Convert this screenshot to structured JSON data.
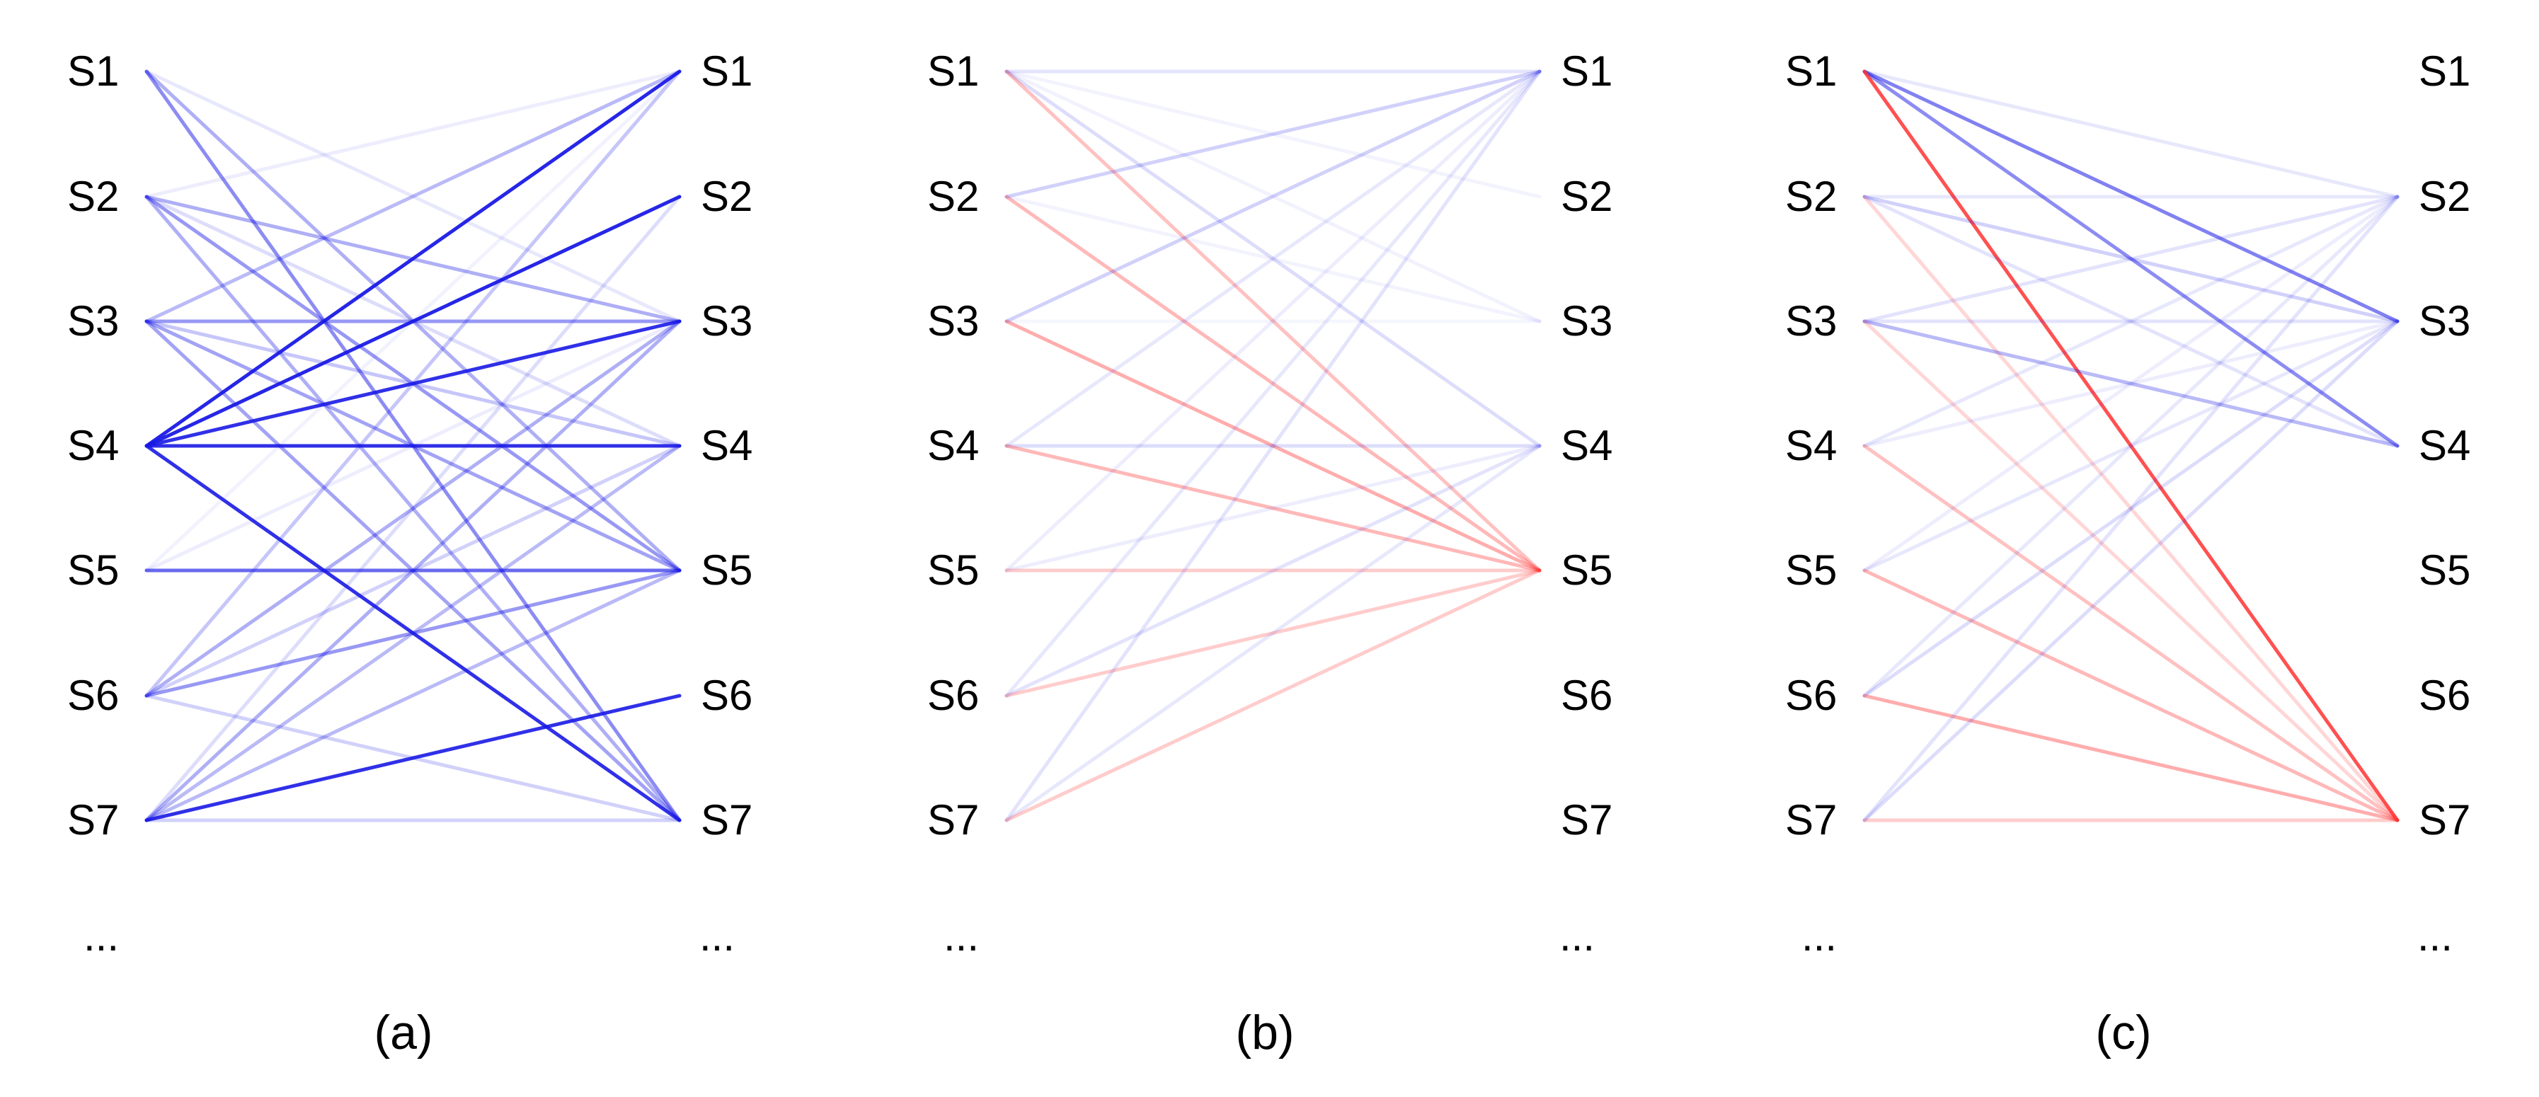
{
  "colors": {
    "blue": "#1a1ae6",
    "red": "#ff3333",
    "text": "#000000",
    "background": "#ffffff"
  },
  "panels": [
    {
      "caption": "(a)",
      "left_nodes": [
        "S1",
        "S2",
        "S3",
        "S4",
        "S5",
        "S6",
        "S7"
      ],
      "right_nodes": [
        "S1",
        "S2",
        "S3",
        "S4",
        "S5",
        "S6",
        "S7"
      ],
      "left_ellipsis": "...",
      "right_ellipsis": "...",
      "edges": [
        {
          "from": 1,
          "to": 7,
          "sign": "pos",
          "weight": 0.5
        },
        {
          "from": 1,
          "to": 5,
          "sign": "pos",
          "weight": 0.35
        },
        {
          "from": 1,
          "to": 3,
          "sign": "pos",
          "weight": 0.1
        },
        {
          "from": 2,
          "to": 1,
          "sign": "pos",
          "weight": 0.08
        },
        {
          "from": 2,
          "to": 3,
          "sign": "pos",
          "weight": 0.35
        },
        {
          "from": 2,
          "to": 4,
          "sign": "pos",
          "weight": 0.15
        },
        {
          "from": 2,
          "to": 5,
          "sign": "pos",
          "weight": 0.45
        },
        {
          "from": 2,
          "to": 7,
          "sign": "pos",
          "weight": 0.35
        },
        {
          "from": 3,
          "to": 1,
          "sign": "pos",
          "weight": 0.3
        },
        {
          "from": 3,
          "to": 3,
          "sign": "pos",
          "weight": 0.45
        },
        {
          "from": 3,
          "to": 4,
          "sign": "pos",
          "weight": 0.25
        },
        {
          "from": 3,
          "to": 5,
          "sign": "pos",
          "weight": 0.4
        },
        {
          "from": 3,
          "to": 7,
          "sign": "pos",
          "weight": 0.4
        },
        {
          "from": 4,
          "to": 1,
          "sign": "pos",
          "weight": 0.95
        },
        {
          "from": 4,
          "to": 2,
          "sign": "pos",
          "weight": 0.95
        },
        {
          "from": 4,
          "to": 3,
          "sign": "pos",
          "weight": 0.9
        },
        {
          "from": 4,
          "to": 4,
          "sign": "pos",
          "weight": 0.9
        },
        {
          "from": 4,
          "to": 7,
          "sign": "pos",
          "weight": 0.9
        },
        {
          "from": 5,
          "to": 5,
          "sign": "pos",
          "weight": 0.65
        },
        {
          "from": 5,
          "to": 1,
          "sign": "pos",
          "weight": 0.06
        },
        {
          "from": 5,
          "to": 3,
          "sign": "pos",
          "weight": 0.08
        },
        {
          "from": 6,
          "to": 1,
          "sign": "pos",
          "weight": 0.25
        },
        {
          "from": 6,
          "to": 3,
          "sign": "pos",
          "weight": 0.35
        },
        {
          "from": 6,
          "to": 4,
          "sign": "pos",
          "weight": 0.2
        },
        {
          "from": 6,
          "to": 5,
          "sign": "pos",
          "weight": 0.45
        },
        {
          "from": 6,
          "to": 7,
          "sign": "pos",
          "weight": 0.2
        },
        {
          "from": 7,
          "to": 2,
          "sign": "pos",
          "weight": 0.15
        },
        {
          "from": 7,
          "to": 3,
          "sign": "pos",
          "weight": 0.35
        },
        {
          "from": 7,
          "to": 4,
          "sign": "pos",
          "weight": 0.3
        },
        {
          "from": 7,
          "to": 5,
          "sign": "pos",
          "weight": 0.3
        },
        {
          "from": 7,
          "to": 6,
          "sign": "pos",
          "weight": 0.9
        },
        {
          "from": 7,
          "to": 7,
          "sign": "pos",
          "weight": 0.2
        }
      ]
    },
    {
      "caption": "(b)",
      "left_nodes": [
        "S1",
        "S2",
        "S3",
        "S4",
        "S5",
        "S6",
        "S7"
      ],
      "right_nodes": [
        "S1",
        "S2",
        "S3",
        "S4",
        "S5",
        "S6",
        "S7"
      ],
      "left_ellipsis": "...",
      "right_ellipsis": "...",
      "edges": [
        {
          "from": 1,
          "to": 1,
          "sign": "pos",
          "weight": 0.12
        },
        {
          "from": 1,
          "to": 3,
          "sign": "pos",
          "weight": 0.06
        },
        {
          "from": 1,
          "to": 4,
          "sign": "pos",
          "weight": 0.15
        },
        {
          "from": 1,
          "to": 5,
          "sign": "neg",
          "weight": 0.3
        },
        {
          "from": 1,
          "to": 2,
          "sign": "pos",
          "weight": 0.05
        },
        {
          "from": 2,
          "to": 1,
          "sign": "pos",
          "weight": 0.2
        },
        {
          "from": 2,
          "to": 5,
          "sign": "neg",
          "weight": 0.35
        },
        {
          "from": 2,
          "to": 3,
          "sign": "pos",
          "weight": 0.05
        },
        {
          "from": 3,
          "to": 1,
          "sign": "pos",
          "weight": 0.2
        },
        {
          "from": 3,
          "to": 5,
          "sign": "neg",
          "weight": 0.4
        },
        {
          "from": 3,
          "to": 3,
          "sign": "pos",
          "weight": 0.04
        },
        {
          "from": 4,
          "to": 1,
          "sign": "pos",
          "weight": 0.1
        },
        {
          "from": 4,
          "to": 4,
          "sign": "pos",
          "weight": 0.15
        },
        {
          "from": 4,
          "to": 5,
          "sign": "neg",
          "weight": 0.35
        },
        {
          "from": 5,
          "to": 1,
          "sign": "pos",
          "weight": 0.08
        },
        {
          "from": 5,
          "to": 4,
          "sign": "pos",
          "weight": 0.08
        },
        {
          "from": 5,
          "to": 5,
          "sign": "neg",
          "weight": 0.25
        },
        {
          "from": 6,
          "to": 1,
          "sign": "pos",
          "weight": 0.1
        },
        {
          "from": 6,
          "to": 4,
          "sign": "pos",
          "weight": 0.12
        },
        {
          "from": 6,
          "to": 5,
          "sign": "neg",
          "weight": 0.25
        },
        {
          "from": 7,
          "to": 1,
          "sign": "pos",
          "weight": 0.12
        },
        {
          "from": 7,
          "to": 4,
          "sign": "pos",
          "weight": 0.1
        },
        {
          "from": 7,
          "to": 5,
          "sign": "neg",
          "weight": 0.25
        }
      ]
    },
    {
      "caption": "(c)",
      "left_nodes": [
        "S1",
        "S2",
        "S3",
        "S4",
        "S5",
        "S6",
        "S7"
      ],
      "right_nodes": [
        "S1",
        "S2",
        "S3",
        "S4",
        "S5",
        "S6",
        "S7"
      ],
      "left_ellipsis": "...",
      "right_ellipsis": "...",
      "edges": [
        {
          "from": 1,
          "to": 2,
          "sign": "pos",
          "weight": 0.1
        },
        {
          "from": 1,
          "to": 3,
          "sign": "pos",
          "weight": 0.55
        },
        {
          "from": 1,
          "to": 4,
          "sign": "pos",
          "weight": 0.5
        },
        {
          "from": 1,
          "to": 7,
          "sign": "neg",
          "weight": 0.85
        },
        {
          "from": 2,
          "to": 2,
          "sign": "pos",
          "weight": 0.1
        },
        {
          "from": 2,
          "to": 3,
          "sign": "pos",
          "weight": 0.2
        },
        {
          "from": 2,
          "to": 4,
          "sign": "pos",
          "weight": 0.12
        },
        {
          "from": 2,
          "to": 7,
          "sign": "neg",
          "weight": 0.2
        },
        {
          "from": 3,
          "to": 2,
          "sign": "pos",
          "weight": 0.12
        },
        {
          "from": 3,
          "to": 3,
          "sign": "pos",
          "weight": 0.12
        },
        {
          "from": 3,
          "to": 4,
          "sign": "pos",
          "weight": 0.3
        },
        {
          "from": 3,
          "to": 7,
          "sign": "neg",
          "weight": 0.2
        },
        {
          "from": 4,
          "to": 2,
          "sign": "pos",
          "weight": 0.1
        },
        {
          "from": 4,
          "to": 3,
          "sign": "pos",
          "weight": 0.08
        },
        {
          "from": 4,
          "to": 7,
          "sign": "neg",
          "weight": 0.3
        },
        {
          "from": 5,
          "to": 2,
          "sign": "pos",
          "weight": 0.08
        },
        {
          "from": 5,
          "to": 3,
          "sign": "pos",
          "weight": 0.1
        },
        {
          "from": 5,
          "to": 7,
          "sign": "neg",
          "weight": 0.35
        },
        {
          "from": 6,
          "to": 2,
          "sign": "pos",
          "weight": 0.1
        },
        {
          "from": 6,
          "to": 3,
          "sign": "pos",
          "weight": 0.15
        },
        {
          "from": 6,
          "to": 7,
          "sign": "neg",
          "weight": 0.4
        },
        {
          "from": 7,
          "to": 2,
          "sign": "pos",
          "weight": 0.12
        },
        {
          "from": 7,
          "to": 3,
          "sign": "pos",
          "weight": 0.15
        },
        {
          "from": 7,
          "to": 7,
          "sign": "neg",
          "weight": 0.25
        }
      ]
    }
  ]
}
